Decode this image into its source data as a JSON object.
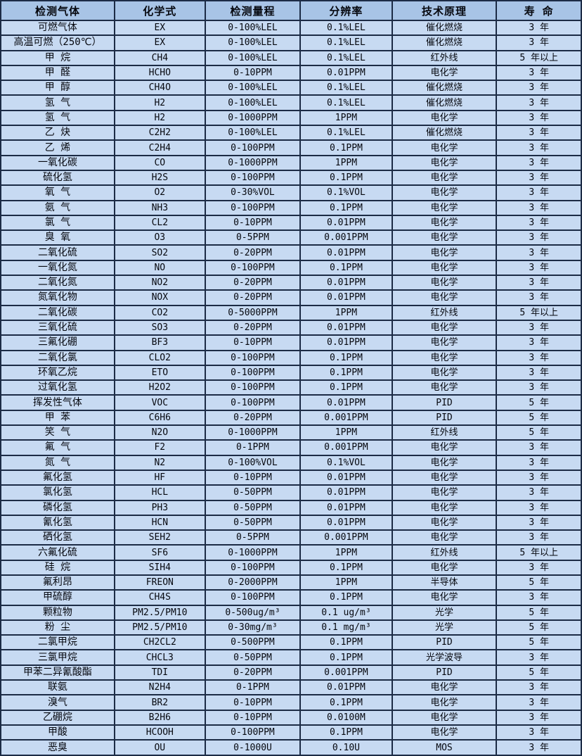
{
  "table": {
    "columns": [
      {
        "key": "gas",
        "label": "检测气体"
      },
      {
        "key": "formula",
        "label": "化学式"
      },
      {
        "key": "range",
        "label": "检测量程"
      },
      {
        "key": "resolution",
        "label": "分辨率"
      },
      {
        "key": "principle",
        "label": "技术原理"
      },
      {
        "key": "lifespan",
        "label": "寿 命"
      }
    ],
    "rows": [
      [
        "可燃气体",
        "EX",
        "0-100%LEL",
        "0.1%LEL",
        "催化燃烧",
        "3 年"
      ],
      [
        "高温可燃（250℃）",
        "EX",
        "0-100%LEL",
        "0.1%LEL",
        "催化燃烧",
        "3 年"
      ],
      [
        "甲 烷",
        "CH4",
        "0-100%LEL",
        "0.1%LEL",
        "红外线",
        "5 年以上"
      ],
      [
        "甲 醛",
        "HCHO",
        "0-10PPM",
        "0.01PPM",
        "电化学",
        "3 年"
      ],
      [
        "甲 醇",
        "CH4O",
        "0-100%LEL",
        "0.1%LEL",
        "催化燃烧",
        "3 年"
      ],
      [
        "氢 气",
        "H2",
        "0-100%LEL",
        "0.1%LEL",
        "催化燃烧",
        "3 年"
      ],
      [
        "氢 气",
        "H2",
        "0-1000PPM",
        "1PPM",
        "电化学",
        "3 年"
      ],
      [
        "乙 炔",
        "C2H2",
        "0-100%LEL",
        "0.1%LEL",
        "催化燃烧",
        "3 年"
      ],
      [
        "乙 烯",
        "C2H4",
        "0-100PPM",
        "0.1PPM",
        "电化学",
        "3 年"
      ],
      [
        "一氧化碳",
        "CO",
        "0-1000PPM",
        "1PPM",
        "电化学",
        "3 年"
      ],
      [
        "硫化氢",
        "H2S",
        "0-100PPM",
        "0.1PPM",
        "电化学",
        "3 年"
      ],
      [
        "氧 气",
        "O2",
        "0-30%VOL",
        "0.1%VOL",
        "电化学",
        "3 年"
      ],
      [
        "氨 气",
        "NH3",
        "0-100PPM",
        "0.1PPM",
        "电化学",
        "3 年"
      ],
      [
        "氯 气",
        "CL2",
        "0-10PPM",
        "0.01PPM",
        "电化学",
        "3 年"
      ],
      [
        "臭 氧",
        "O3",
        "0-5PPM",
        "0.001PPM",
        "电化学",
        "3 年"
      ],
      [
        "二氧化硫",
        "SO2",
        "0-20PPM",
        "0.01PPM",
        "电化学",
        "3 年"
      ],
      [
        "一氧化氮",
        "NO",
        "0-100PPM",
        "0.1PPM",
        "电化学",
        "3 年"
      ],
      [
        "二氧化氮",
        "NO2",
        "0-20PPM",
        "0.01PPM",
        "电化学",
        "3 年"
      ],
      [
        "氮氧化物",
        "NOX",
        "0-20PPM",
        "0.01PPM",
        "电化学",
        "3 年"
      ],
      [
        "二氧化碳",
        "CO2",
        "0-5000PPM",
        "1PPM",
        "红外线",
        "5 年以上"
      ],
      [
        "三氧化硫",
        "SO3",
        "0-20PPM",
        "0.01PPM",
        "电化学",
        "3 年"
      ],
      [
        "三氟化硼",
        "BF3",
        "0-10PPM",
        "0.01PPM",
        "电化学",
        "3 年"
      ],
      [
        "二氧化氯",
        "CLO2",
        "0-100PPM",
        "0.1PPM",
        "电化学",
        "3 年"
      ],
      [
        "环氧乙烷",
        "ETO",
        "0-100PPM",
        "0.1PPM",
        "电化学",
        "3 年"
      ],
      [
        "过氧化氢",
        "H2O2",
        "0-100PPM",
        "0.1PPM",
        "电化学",
        "3 年"
      ],
      [
        "挥发性气体",
        "VOC",
        "0-100PPM",
        "0.01PPM",
        "PID",
        "5 年"
      ],
      [
        "甲 苯",
        "C6H6",
        "0-20PPM",
        "0.001PPM",
        "PID",
        "5 年"
      ],
      [
        "笑 气",
        "N2O",
        "0-1000PPM",
        "1PPM",
        "红外线",
        "5 年"
      ],
      [
        "氟 气",
        "F2",
        "0-1PPM",
        "0.001PPM",
        "电化学",
        "3 年"
      ],
      [
        "氮 气",
        "N2",
        "0-100%VOL",
        "0.1%VOL",
        "电化学",
        "3 年"
      ],
      [
        "氟化氢",
        "HF",
        "0-10PPM",
        "0.01PPM",
        "电化学",
        "3 年"
      ],
      [
        "氯化氢",
        "HCL",
        "0-50PPM",
        "0.01PPM",
        "电化学",
        "3 年"
      ],
      [
        "磷化氢",
        "PH3",
        "0-50PPM",
        "0.01PPM",
        "电化学",
        "3 年"
      ],
      [
        "氰化氢",
        "HCN",
        "0-50PPM",
        "0.01PPM",
        "电化学",
        "3 年"
      ],
      [
        "硒化氢",
        "SEH2",
        "0-5PPM",
        "0.001PPM",
        "电化学",
        "3 年"
      ],
      [
        "六氟化硫",
        "SF6",
        "0-1000PPM",
        "1PPM",
        "红外线",
        "5 年以上"
      ],
      [
        "硅 烷",
        "SIH4",
        "0-100PPM",
        "0.1PPM",
        "电化学",
        "3 年"
      ],
      [
        "氟利昂",
        "FREON",
        "0-2000PPM",
        "1PPM",
        "半导体",
        "5 年"
      ],
      [
        "甲硫醇",
        "CH4S",
        "0-100PPM",
        "0.1PPM",
        "电化学",
        "3 年"
      ],
      [
        "颗粒物",
        "PM2.5/PM10",
        "0-500ug/m³",
        "0.1 ug/m³",
        "光学",
        "5 年"
      ],
      [
        "粉 尘",
        "PM2.5/PM10",
        "0-30mg/m³",
        "0.1 mg/m³",
        "光学",
        "5 年"
      ],
      [
        "二氯甲烷",
        "CH2CL2",
        "0-500PPM",
        "0.1PPM",
        "PID",
        "5 年"
      ],
      [
        "三氯甲烷",
        "CHCL3",
        "0-50PPM",
        "0.1PPM",
        "光学波导",
        "3 年"
      ],
      [
        "甲苯二异氰酸酯",
        "TDI",
        "0-20PPM",
        "0.001PPM",
        "PID",
        "5 年"
      ],
      [
        "联氨",
        "N2H4",
        "0-1PPM",
        "0.01PPM",
        "电化学",
        "3 年"
      ],
      [
        "溴气",
        "BR2",
        "0-10PPM",
        "0.1PPM",
        "电化学",
        "3 年"
      ],
      [
        "乙硼烷",
        "B2H6",
        "0-10PPM",
        "0.0100M",
        "电化学",
        "3 年"
      ],
      [
        "甲酸",
        "HCOOH",
        "0-100PPM",
        "0.1PPM",
        "电化学",
        "3 年"
      ],
      [
        "恶臭",
        "OU",
        "0-1000U",
        "0.10U",
        "MOS",
        "3 年"
      ]
    ]
  },
  "colors": {
    "header_bg": "#a8c4e6",
    "row_bg": "#c7daf2",
    "border": "#1c2b45",
    "text": "#06080f"
  }
}
